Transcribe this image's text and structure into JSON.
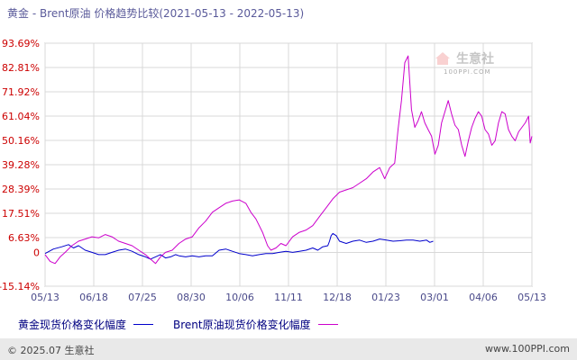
{
  "chart_data": {
    "type": "line",
    "title": "黄金 - Brent原油 价格趋势比较(2021-05-13 - 2022-05-13)",
    "x_tick_labels": [
      "05/13",
      "06/18",
      "07/25",
      "08/30",
      "10/06",
      "11/11",
      "12/18",
      "01/23",
      "03/01",
      "04/06",
      "05/13"
    ],
    "y_tick_labels": [
      "93.69%",
      "82.81%",
      "71.92%",
      "61.04%",
      "50.16%",
      "39.28%",
      "28.39%",
      "17.51%",
      "6.63%",
      "0",
      "-15.14%"
    ],
    "y_ticks": [
      93.69,
      82.81,
      71.92,
      61.04,
      50.16,
      39.28,
      28.39,
      17.51,
      6.63,
      0,
      -15.14
    ],
    "ylim": [
      -15.14,
      93.69
    ],
    "grid": true,
    "legend_position": "bottom",
    "series": [
      {
        "name": "黄金现货价格变化幅度",
        "color": "#0000cc",
        "values": [
          [
            0,
            -0.5
          ],
          [
            0.25,
            1.5
          ],
          [
            0.5,
            2.5
          ],
          [
            0.7,
            3.5
          ],
          [
            0.85,
            2
          ],
          [
            1,
            3
          ],
          [
            1.2,
            1
          ],
          [
            1.4,
            0
          ],
          [
            1.6,
            -1
          ],
          [
            1.8,
            -1
          ],
          [
            2,
            0
          ],
          [
            2.2,
            1
          ],
          [
            2.4,
            1.5
          ],
          [
            2.6,
            0.5
          ],
          [
            2.8,
            -1
          ],
          [
            3,
            -2
          ],
          [
            3.15,
            -3
          ],
          [
            3.3,
            -2
          ],
          [
            3.45,
            -1
          ],
          [
            3.6,
            -2.5
          ],
          [
            3.75,
            -2
          ],
          [
            3.9,
            -1
          ],
          [
            4,
            -1.5
          ],
          [
            4.2,
            -2
          ],
          [
            4.4,
            -1.5
          ],
          [
            4.6,
            -2
          ],
          [
            4.8,
            -1.5
          ],
          [
            5,
            -1.5
          ],
          [
            5.2,
            1
          ],
          [
            5.4,
            1.5
          ],
          [
            5.6,
            0.5
          ],
          [
            5.8,
            -0.5
          ],
          [
            6,
            -1
          ],
          [
            6.2,
            -1.5
          ],
          [
            6.4,
            -1
          ],
          [
            6.6,
            -0.5
          ],
          [
            6.8,
            -0.5
          ],
          [
            7,
            0
          ],
          [
            7.2,
            0.5
          ],
          [
            7.4,
            0
          ],
          [
            7.6,
            0.5
          ],
          [
            7.8,
            1
          ],
          [
            8,
            2
          ],
          [
            8.15,
            1
          ],
          [
            8.3,
            2.5
          ],
          [
            8.45,
            3
          ],
          [
            8.5,
            5
          ],
          [
            8.55,
            7.5
          ],
          [
            8.6,
            8.5
          ],
          [
            8.7,
            7.5
          ],
          [
            8.8,
            5
          ],
          [
            9,
            4
          ],
          [
            9.2,
            5
          ],
          [
            9.4,
            5.5
          ],
          [
            9.6,
            4.5
          ],
          [
            9.8,
            5
          ],
          [
            10,
            6
          ],
          [
            10.2,
            5.5
          ],
          [
            10.4,
            5
          ],
          [
            10.6,
            5.2
          ],
          [
            10.8,
            5.5
          ],
          [
            11,
            5.5
          ],
          [
            11.2,
            5
          ],
          [
            11.4,
            5.5
          ],
          [
            11.5,
            4.5
          ],
          [
            11.6,
            5
          ]
        ]
      },
      {
        "name": "Brent原油现货价格变化幅度",
        "color": "#cc00cc",
        "values": [
          [
            0,
            -1
          ],
          [
            0.15,
            -4
          ],
          [
            0.3,
            -5
          ],
          [
            0.45,
            -2
          ],
          [
            0.6,
            0
          ],
          [
            0.8,
            3
          ],
          [
            1,
            5
          ],
          [
            1.2,
            6
          ],
          [
            1.4,
            7
          ],
          [
            1.6,
            6.5
          ],
          [
            1.8,
            8
          ],
          [
            2,
            7
          ],
          [
            2.2,
            5
          ],
          [
            2.4,
            4
          ],
          [
            2.6,
            3
          ],
          [
            2.8,
            1
          ],
          [
            3,
            -1
          ],
          [
            3.15,
            -3
          ],
          [
            3.3,
            -5
          ],
          [
            3.45,
            -2
          ],
          [
            3.6,
            0
          ],
          [
            3.8,
            1
          ],
          [
            4,
            4
          ],
          [
            4.2,
            6
          ],
          [
            4.4,
            7
          ],
          [
            4.6,
            11
          ],
          [
            4.8,
            14
          ],
          [
            5,
            18
          ],
          [
            5.2,
            20
          ],
          [
            5.4,
            22
          ],
          [
            5.6,
            23
          ],
          [
            5.8,
            23.5
          ],
          [
            6,
            22
          ],
          [
            6.15,
            18
          ],
          [
            6.3,
            15
          ],
          [
            6.5,
            9
          ],
          [
            6.65,
            3
          ],
          [
            6.75,
            1
          ],
          [
            6.9,
            2
          ],
          [
            7.05,
            4
          ],
          [
            7.2,
            3
          ],
          [
            7.4,
            7
          ],
          [
            7.6,
            9
          ],
          [
            7.8,
            10
          ],
          [
            8,
            12
          ],
          [
            8.2,
            16
          ],
          [
            8.4,
            20
          ],
          [
            8.6,
            24
          ],
          [
            8.8,
            27
          ],
          [
            9,
            28
          ],
          [
            9.2,
            29
          ],
          [
            9.4,
            31
          ],
          [
            9.6,
            33
          ],
          [
            9.8,
            36
          ],
          [
            10,
            38
          ],
          [
            10.15,
            33
          ],
          [
            10.3,
            38
          ],
          [
            10.45,
            40
          ],
          [
            10.55,
            55
          ],
          [
            10.65,
            68
          ],
          [
            10.75,
            85
          ],
          [
            10.85,
            88
          ],
          [
            10.95,
            64
          ],
          [
            11.05,
            56
          ],
          [
            11.15,
            59
          ],
          [
            11.25,
            63
          ],
          [
            11.35,
            58
          ],
          [
            11.45,
            55
          ],
          [
            11.55,
            52
          ],
          [
            11.65,
            44
          ],
          [
            11.75,
            48
          ],
          [
            11.85,
            58
          ],
          [
            11.95,
            63
          ],
          [
            12.05,
            68
          ],
          [
            12.15,
            62
          ],
          [
            12.25,
            57
          ],
          [
            12.35,
            55
          ],
          [
            12.45,
            48
          ],
          [
            12.55,
            43
          ],
          [
            12.65,
            50
          ],
          [
            12.75,
            56
          ],
          [
            12.85,
            60
          ],
          [
            12.95,
            63
          ],
          [
            13.05,
            61
          ],
          [
            13.15,
            55
          ],
          [
            13.25,
            53
          ],
          [
            13.35,
            48
          ],
          [
            13.45,
            50
          ],
          [
            13.55,
            58
          ],
          [
            13.65,
            63
          ],
          [
            13.75,
            62
          ],
          [
            13.85,
            55
          ],
          [
            13.95,
            52
          ],
          [
            14.05,
            50
          ],
          [
            14.15,
            54
          ],
          [
            14.25,
            56
          ],
          [
            14.35,
            58
          ],
          [
            14.45,
            61
          ],
          [
            14.5,
            49
          ],
          [
            14.55,
            52
          ]
        ]
      }
    ]
  },
  "watermark": {
    "logo_text": "生意社",
    "sub_text": "100PPI.COM"
  },
  "footer": {
    "left": "© 2025.07 生意社",
    "right": "www.100PPI.com"
  },
  "colors": {
    "axis_text": "#cc0000",
    "grid": "#d8d8d8",
    "footer_bg": "#e9e9e9"
  }
}
